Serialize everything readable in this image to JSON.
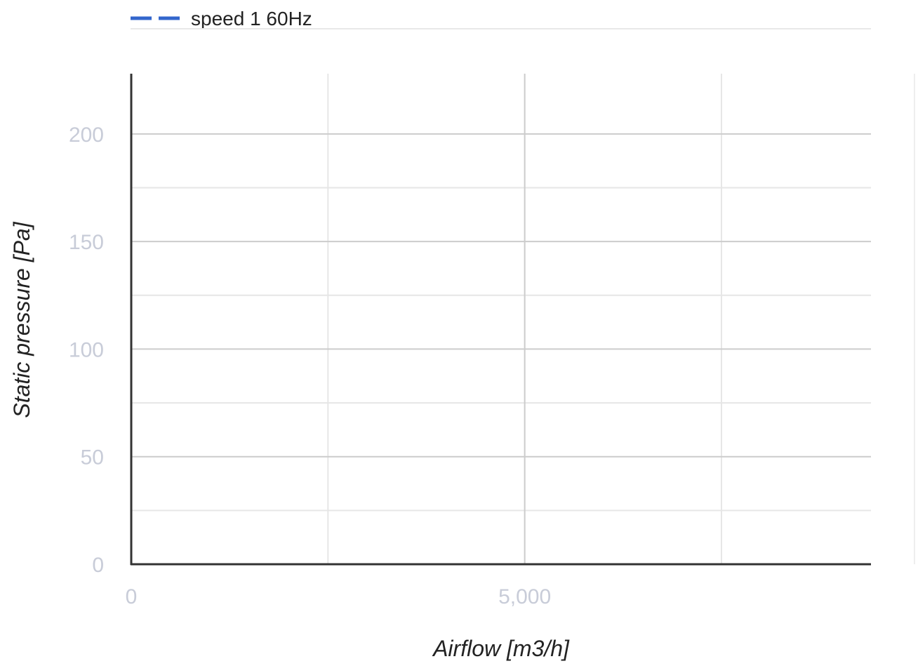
{
  "chart_data": {
    "type": "line",
    "title": "",
    "legend": {
      "placement": "top-left",
      "entries": [
        {
          "name": "speed 1 60Hz",
          "color": "#3366cc",
          "style": "dashed"
        }
      ]
    },
    "series": [
      {
        "name": "speed 1 60Hz",
        "color": "#3366cc",
        "x": [],
        "y": []
      }
    ],
    "xlabel": "Airflow [m3/h]",
    "ylabel": "Static pressure [Pa]",
    "xlim": [
      0,
      9400
    ],
    "ylim": [
      0,
      228
    ],
    "x_major_ticks": [
      0,
      5000
    ],
    "x_major_tick_labels": [
      "0",
      "5,000"
    ],
    "x_minor_ticks": [
      2500,
      7500
    ],
    "y_major_ticks": [
      0,
      50,
      100,
      150,
      200
    ],
    "y_major_tick_labels": [
      "0",
      "50",
      "100",
      "150",
      "200"
    ],
    "y_minor_ticks": [
      25,
      75,
      125,
      175
    ],
    "grid": true,
    "colors": {
      "axis": "#333333",
      "major_grid": "#cccccc",
      "minor_grid": "#e6e6e6",
      "tick_label": "#c8ccd8",
      "axis_title": "#222222",
      "legend_text": "#222222"
    }
  }
}
